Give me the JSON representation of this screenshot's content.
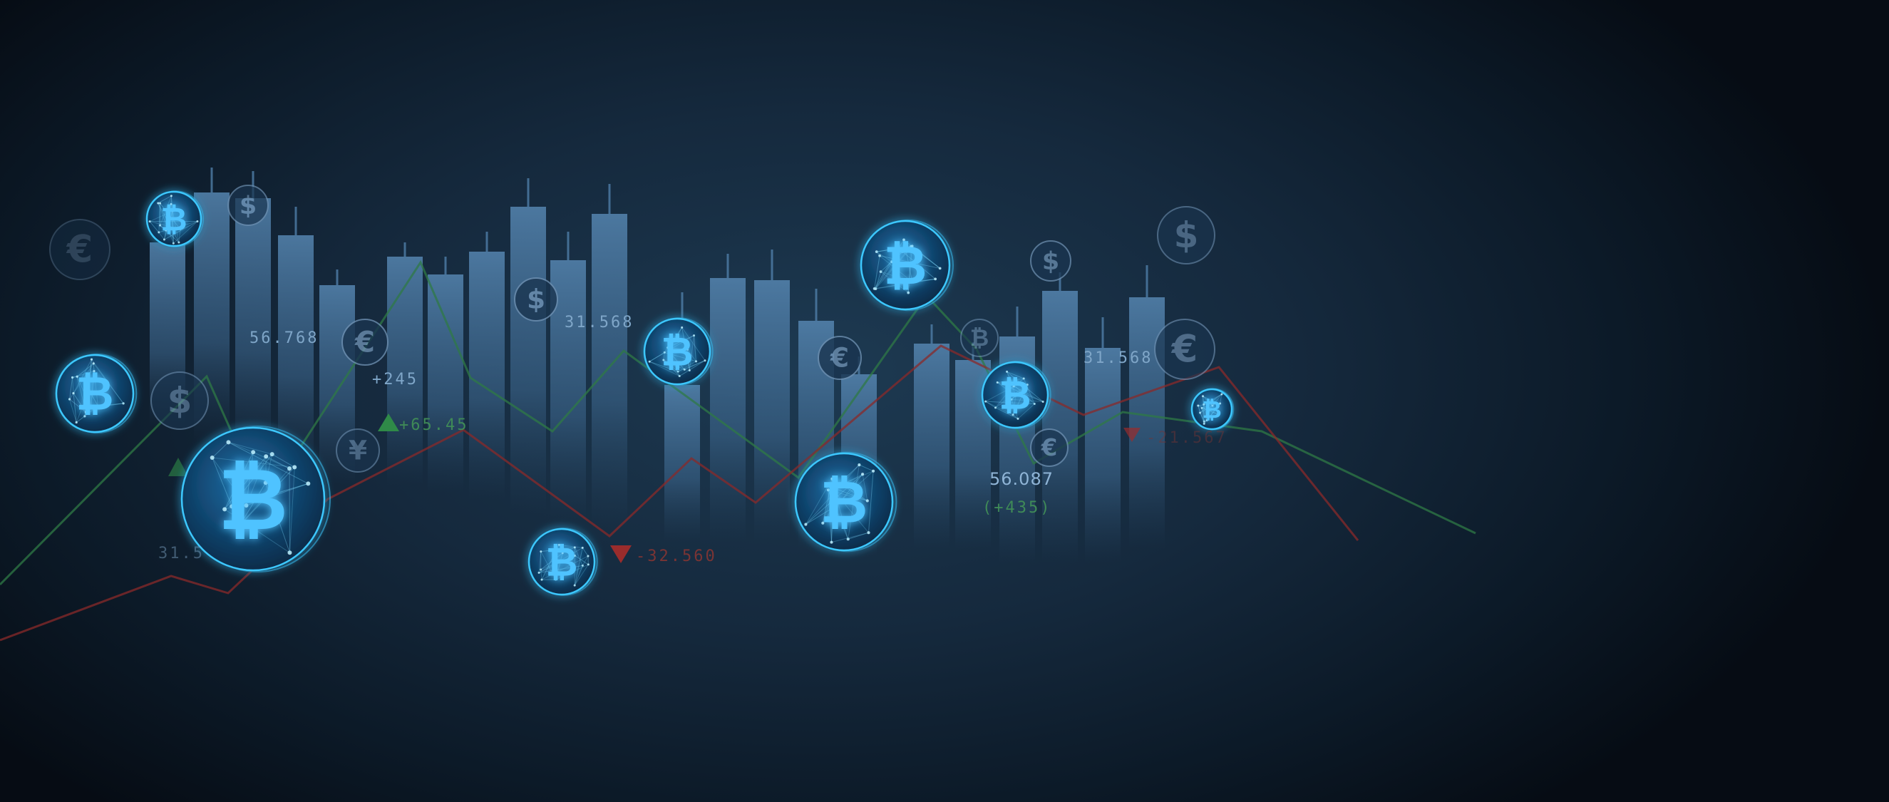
{
  "scene": {
    "candles_color": "#4f7ea8",
    "green_line_color": "#2f7a45",
    "red_line_color": "#8a2a2a",
    "coin_glow_color": "#3cc8ff",
    "symbol_color": "#6d8fb0"
  },
  "labels": {
    "l1": "56.768",
    "l2": "+245",
    "l3": "+65.45",
    "l4": "31.568",
    "l5": "-32.560",
    "l6": "56.087",
    "l7": "(+435)",
    "l8": "31.568",
    "l9": "-21.567",
    "l10": "31.5"
  },
  "bitcoin_coins": [
    "bitcoin",
    "bitcoin",
    "bitcoin",
    "bitcoin",
    "bitcoin",
    "bitcoin",
    "bitcoin",
    "bitcoin",
    "bitcoin"
  ],
  "currency_symbols": [
    "euro",
    "dollar",
    "dollar",
    "euro",
    "yen",
    "dollar",
    "euro",
    "dollar",
    "dollar",
    "euro",
    "bitcoin",
    "euro"
  ]
}
